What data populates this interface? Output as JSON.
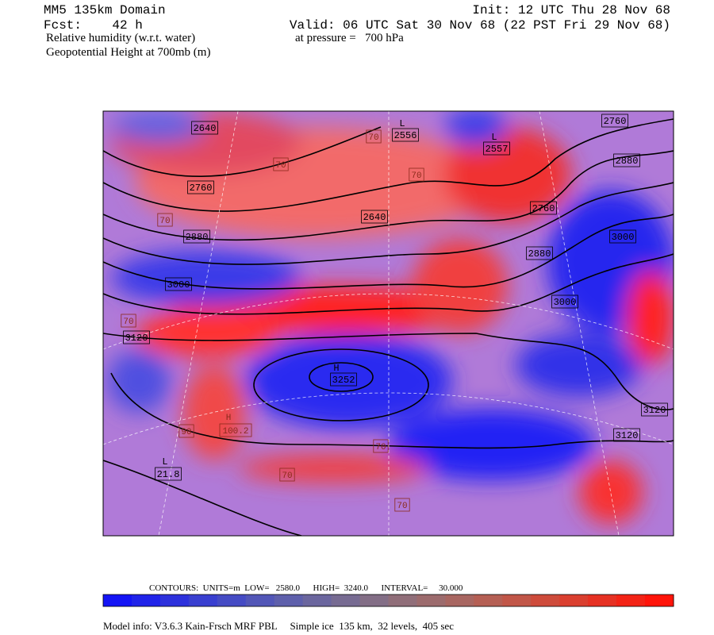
{
  "header": {
    "domain": "MM5 135km Domain",
    "init": "Init: 12 UTC Thu 28 Nov 68",
    "fcst": "Fcst:    42 h",
    "valid": "Valid: 06 UTC Sat 30 Nov 68 (22 PST Fri 29 Nov 68)",
    "field1": "Relative humidity (w.r.t. water)",
    "pressure": "at pressure =   700 hPa",
    "field2": "Geopotential Height at 700mb (m)"
  },
  "map": {
    "labels": [
      "2640",
      "L",
      "2556",
      "L",
      "2557",
      "2760",
      "2880",
      "2760",
      "2640",
      "2760",
      "3000",
      "2880",
      "2880",
      "3000",
      "3000",
      "3120",
      "H",
      "3252",
      "3120",
      "3120",
      "70",
      "70",
      "70",
      "70",
      "70",
      "70",
      "70",
      "70",
      "H",
      "100.2",
      "90",
      "L",
      "21.8"
    ]
  },
  "footer": {
    "contours": "CONTOURS:  UNITS=m  LOW=   2580.0      HIGH=  3240.0      INTERVAL=     30.000",
    "model": "Model info: V3.6.3 Kain-Frsch MRF PBL     Simple ice  135 km,  32 levels,  405 sec"
  }
}
